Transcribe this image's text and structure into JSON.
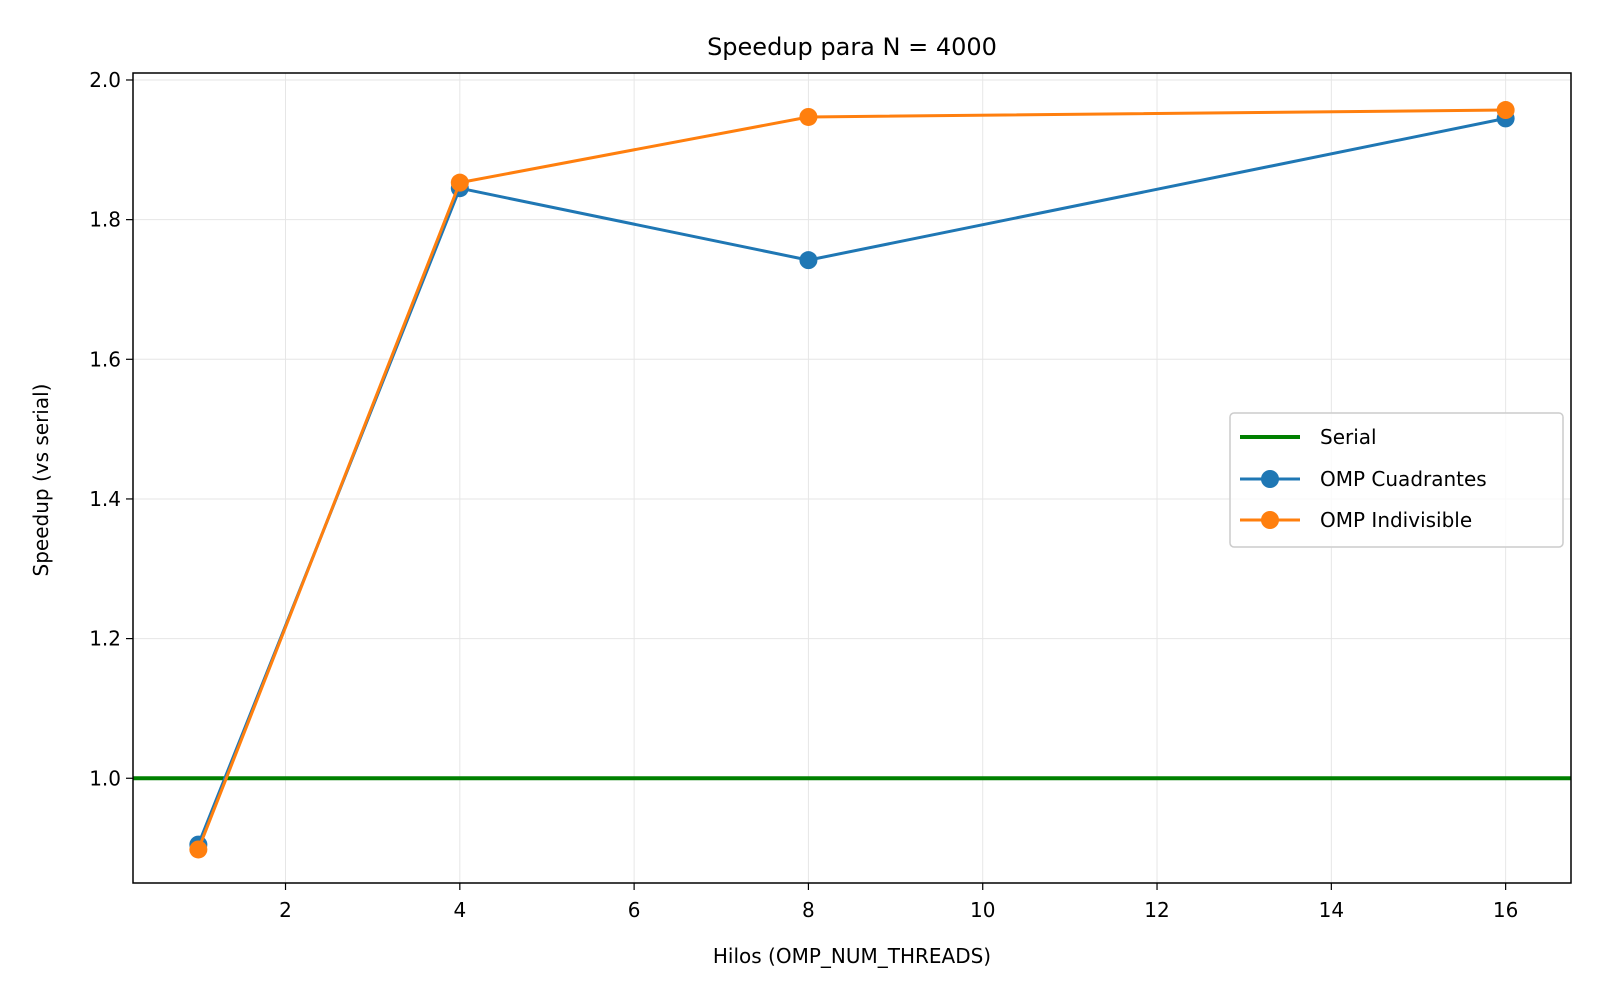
{
  "chart_data": {
    "type": "line",
    "title": "Speedup para N = 4000",
    "xlabel": "Hilos (OMP_NUM_THREADS)",
    "ylabel": "Speedup (vs serial)",
    "xlim": [
      0.25,
      16.75
    ],
    "ylim": [
      0.85,
      2.01
    ],
    "xticks": [
      2,
      4,
      6,
      8,
      10,
      12,
      14,
      16
    ],
    "yticks": [
      1.0,
      1.2,
      1.4,
      1.6,
      1.8,
      2.0
    ],
    "xtick_labels": [
      "2",
      "4",
      "6",
      "8",
      "10",
      "12",
      "14",
      "16"
    ],
    "ytick_labels": [
      "1.0",
      "1.2",
      "1.4",
      "1.6",
      "1.8",
      "2.0"
    ],
    "grid": true,
    "legend_position": "center-right",
    "reference_line": {
      "name": "Serial",
      "y": 1.0,
      "color": "#008000"
    },
    "series": [
      {
        "name": "OMP Cuadrantes",
        "color": "#1f77b4",
        "x": [
          1,
          4,
          8,
          16
        ],
        "y": [
          0.905,
          1.845,
          1.742,
          1.945
        ]
      },
      {
        "name": "OMP Indivisible",
        "color": "#ff7f0e",
        "x": [
          1,
          4,
          8,
          16
        ],
        "y": [
          0.898,
          1.853,
          1.947,
          1.957
        ]
      }
    ]
  }
}
